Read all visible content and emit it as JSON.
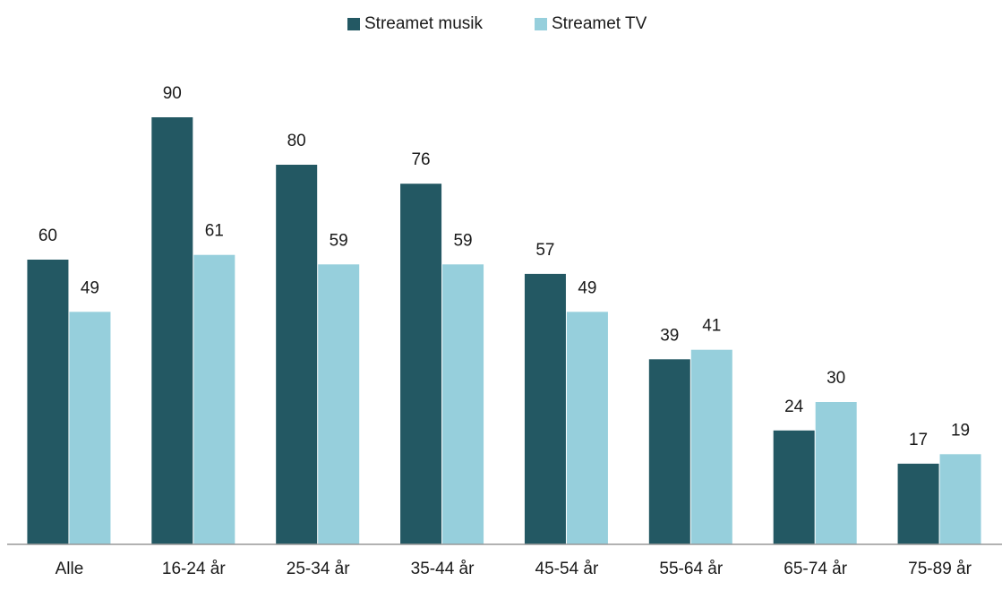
{
  "chart_data": {
    "type": "bar",
    "categories": [
      "Alle",
      "16-24 år",
      "25-34 år",
      "35-44 år",
      "45-54 år",
      "55-64 år",
      "65-74 år",
      "75-89 år"
    ],
    "series": [
      {
        "name": "Streamet musik",
        "color": "#235863",
        "values": [
          60,
          90,
          80,
          76,
          57,
          39,
          24,
          17
        ]
      },
      {
        "name": "Streamet TV",
        "color": "#96cfdc",
        "values": [
          49,
          61,
          59,
          59,
          49,
          41,
          30,
          19
        ]
      }
    ],
    "legend": "top"
  }
}
